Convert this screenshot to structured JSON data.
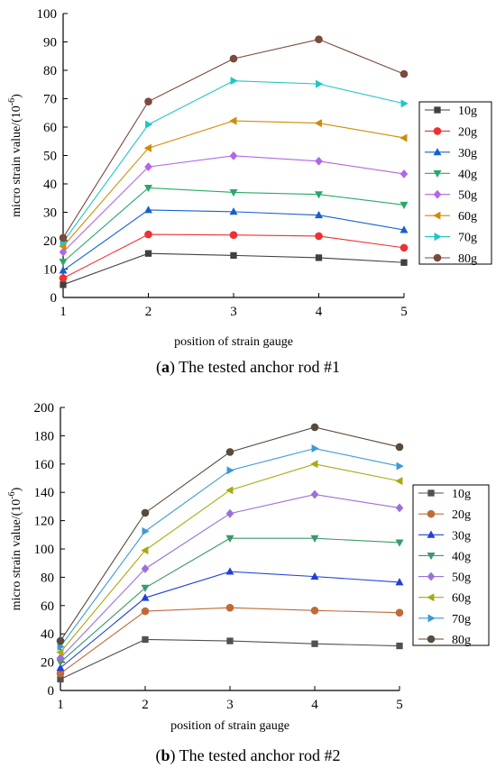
{
  "chart_data": [
    {
      "type": "line",
      "id": "a",
      "caption_letter": "a",
      "caption_text": "The tested anchor rod #1",
      "xlabel": "position of strain gauge",
      "ylabel": "micro strain value/(10",
      "ylabel_sup": "-6",
      "ylabel_end": ")",
      "x": [
        1,
        2,
        3,
        4,
        5
      ],
      "xlim": [
        1,
        5
      ],
      "ylim": [
        0,
        100
      ],
      "yticks": [
        0,
        10,
        20,
        30,
        40,
        50,
        60,
        70,
        80,
        90,
        100
      ],
      "xticks": [
        1,
        2,
        3,
        4,
        5
      ],
      "legend_position": "right",
      "series": [
        {
          "name": "10g",
          "color": "#404040",
          "marker": "square",
          "values": [
            4.5,
            15.5,
            14.8,
            14.0,
            12.3
          ]
        },
        {
          "name": "20g",
          "color": "#ee3030",
          "marker": "circle",
          "values": [
            6.8,
            22.2,
            22.0,
            21.6,
            17.5
          ]
        },
        {
          "name": "30g",
          "color": "#1560d0",
          "marker": "triangle-up",
          "values": [
            9.5,
            30.8,
            30.2,
            29.0,
            23.8
          ]
        },
        {
          "name": "40g",
          "color": "#2aa86a",
          "marker": "triangle-down",
          "values": [
            12.5,
            38.6,
            37.0,
            36.3,
            32.6
          ]
        },
        {
          "name": "50g",
          "color": "#b266e6",
          "marker": "diamond",
          "values": [
            16.0,
            46.0,
            49.9,
            48.0,
            43.5
          ]
        },
        {
          "name": "60g",
          "color": "#d08c00",
          "marker": "triangle-left",
          "values": [
            18.0,
            52.6,
            62.2,
            61.4,
            56.2
          ]
        },
        {
          "name": "70g",
          "color": "#1cc7c7",
          "marker": "triangle-right",
          "values": [
            19.5,
            60.9,
            76.3,
            75.2,
            68.3
          ]
        },
        {
          "name": "80g",
          "color": "#7a4a3e",
          "marker": "circle",
          "values": [
            21.0,
            69.0,
            84.1,
            90.9,
            78.7
          ]
        }
      ]
    },
    {
      "type": "line",
      "id": "b",
      "caption_letter": "b",
      "caption_text": "The tested anchor rod #2",
      "xlabel": "position of strain gauge",
      "ylabel": "micro strain value/(10",
      "ylabel_sup": "-6",
      "ylabel_end": ")",
      "x": [
        1,
        2,
        3,
        4,
        5
      ],
      "xlim": [
        1,
        5
      ],
      "ylim": [
        0,
        200
      ],
      "yticks": [
        0,
        20,
        40,
        60,
        80,
        100,
        120,
        140,
        160,
        180,
        200
      ],
      "xticks": [
        1,
        2,
        3,
        4,
        5
      ],
      "legend_position": "right",
      "series": [
        {
          "name": "10g",
          "color": "#505050",
          "marker": "square",
          "values": [
            8,
            36,
            35,
            33,
            31.5
          ]
        },
        {
          "name": "20g",
          "color": "#c06a3a",
          "marker": "circle",
          "values": [
            12,
            56,
            58.5,
            56.5,
            55
          ]
        },
        {
          "name": "30g",
          "color": "#2040d8",
          "marker": "triangle-up",
          "values": [
            16,
            65.5,
            84,
            80.5,
            76.5
          ]
        },
        {
          "name": "40g",
          "color": "#3a9a6a",
          "marker": "triangle-down",
          "values": [
            20,
            72.5,
            107.5,
            107.5,
            104.5
          ]
        },
        {
          "name": "50g",
          "color": "#9a70d8",
          "marker": "diamond",
          "values": [
            23,
            86,
            125,
            138.5,
            129
          ]
        },
        {
          "name": "60g",
          "color": "#a8aa10",
          "marker": "triangle-left",
          "values": [
            27,
            99,
            141.5,
            160,
            148
          ]
        },
        {
          "name": "70g",
          "color": "#3a9ad8",
          "marker": "triangle-right",
          "values": [
            31,
            112.5,
            155.5,
            171,
            158.5
          ]
        },
        {
          "name": "80g",
          "color": "#5a4a3a",
          "marker": "circle",
          "values": [
            35,
            125.5,
            168.5,
            186,
            172
          ]
        }
      ]
    }
  ]
}
